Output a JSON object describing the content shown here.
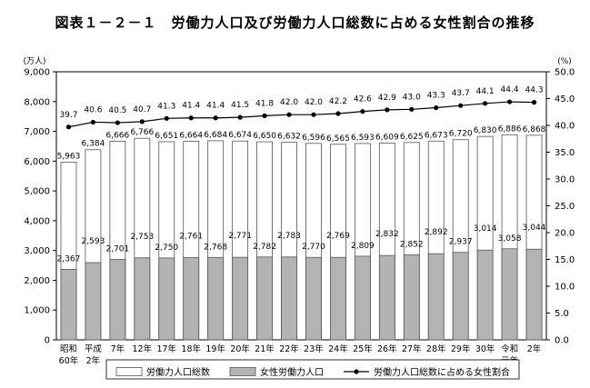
{
  "chart_data": {
    "type": "bar",
    "title": "図表１－２－１　労働力人口及び労働力人口総数に占める女性割合の推移",
    "categories": [
      [
        "昭和",
        "60年"
      ],
      [
        "平成",
        "2年"
      ],
      [
        "7年"
      ],
      [
        "12年"
      ],
      [
        "17年"
      ],
      [
        "18年"
      ],
      [
        "19年"
      ],
      [
        "20年"
      ],
      [
        "21年"
      ],
      [
        "22年"
      ],
      [
        "23年"
      ],
      [
        "24年"
      ],
      [
        "25年"
      ],
      [
        "26年"
      ],
      [
        "27年"
      ],
      [
        "28年"
      ],
      [
        "29年"
      ],
      [
        "30年"
      ],
      [
        "令和",
        "元年"
      ],
      [
        "2年"
      ]
    ],
    "ylabel": "(万人)",
    "ylabel_right": "(%)",
    "ylim": [
      0,
      9000
    ],
    "ylim_right": [
      0,
      50
    ],
    "yticks": [
      0,
      1000,
      2000,
      3000,
      4000,
      5000,
      6000,
      7000,
      8000,
      9000
    ],
    "yticks_labels": [
      "0",
      "1,000",
      "2,000",
      "3,000",
      "4,000",
      "5,000",
      "6,000",
      "7,000",
      "8,000",
      "9,000"
    ],
    "yticks_right": [
      0,
      5,
      10,
      15,
      20,
      25,
      30,
      35,
      40,
      45,
      50
    ],
    "yticks_right_labels": [
      "0.0",
      "5.0",
      "10.0",
      "15.0",
      "20.0",
      "25.0",
      "30.0",
      "35.0",
      "40.0",
      "45.0",
      "50.0"
    ],
    "series": [
      {
        "name": "労働力人口総数",
        "kind": "bar",
        "color": "#ffffff",
        "values": [
          5963,
          6384,
          6666,
          6766,
          6651,
          6664,
          6684,
          6674,
          6650,
          6632,
          6596,
          6565,
          6593,
          6609,
          6625,
          6673,
          6720,
          6830,
          6886,
          6868
        ],
        "labels": [
          "5,963",
          "6,384",
          "6,666",
          "6,766",
          "6,651",
          "6,664",
          "6,684",
          "6,674",
          "6,650",
          "6,632",
          "6,596",
          "6,565",
          "6,593",
          "6,609",
          "6,625",
          "6,673",
          "6,720",
          "6,830",
          "6,886",
          "6,868"
        ]
      },
      {
        "name": "女性労働力人口",
        "kind": "bar",
        "color": "#b3b3b3",
        "values": [
          2367,
          2593,
          2701,
          2753,
          2750,
          2761,
          2768,
          2771,
          2782,
          2783,
          2770,
          2769,
          2809,
          2832,
          2852,
          2892,
          2937,
          3014,
          3058,
          3044
        ],
        "labels": [
          "2,367",
          "2,593",
          "2,701",
          "2,753",
          "2,750",
          "2,761",
          "2,768",
          "2,771",
          "2,782",
          "2,783",
          "2,770",
          "2,769",
          "2,809",
          "2,832",
          "2,852",
          "2,892",
          "2,937",
          "3,014",
          "3,058",
          "3,044"
        ]
      },
      {
        "name": "労働力人口総数に占める女性割合",
        "kind": "line",
        "axis": "right",
        "color": "#000000",
        "values": [
          39.7,
          40.6,
          40.5,
          40.7,
          41.3,
          41.4,
          41.4,
          41.5,
          41.8,
          42.0,
          42.0,
          42.2,
          42.6,
          42.9,
          43.0,
          43.3,
          43.7,
          44.1,
          44.4,
          44.3
        ],
        "labels": [
          "39.7",
          "40.6",
          "40.5",
          "40.7",
          "41.3",
          "41.4",
          "41.4",
          "41.5",
          "41.8",
          "42.0",
          "42.0",
          "42.2",
          "42.6",
          "42.9",
          "43.0",
          "43.3",
          "43.7",
          "44.1",
          "44.4",
          "44.3"
        ]
      }
    ],
    "legend_position": "bottom",
    "grid": false
  }
}
